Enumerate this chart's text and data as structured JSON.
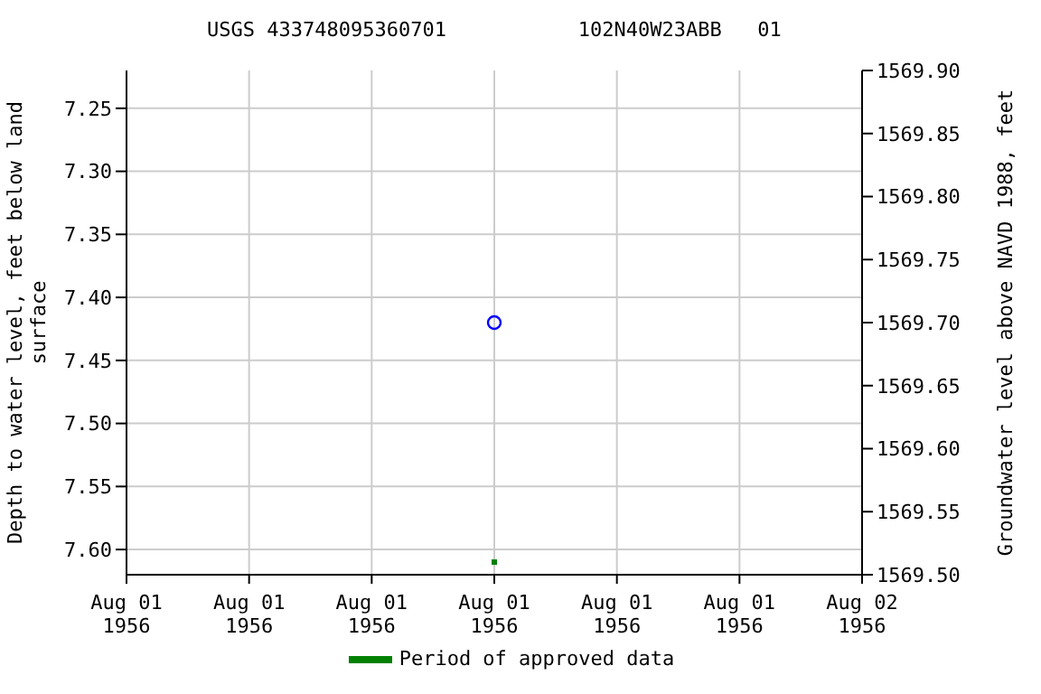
{
  "chart_data": {
    "type": "scatter",
    "title": "USGS 433748095360701           102N40W23ABB   01",
    "ylabel": "Depth to water level, feet below land surface",
    "y2label": "Groundwater level above NAVD 1988, feet",
    "x": [
      "1956-08-01T12:00"
    ],
    "xlim": [
      "1956-08-01T00:00",
      "1956-08-02T00:00"
    ],
    "xticks": [
      {
        "value": "1956-08-01T00:00",
        "label": "Aug 01\n1956"
      },
      {
        "value": "1956-08-01T04:00",
        "label": "Aug 01\n1956"
      },
      {
        "value": "1956-08-01T08:00",
        "label": "Aug 01\n1956"
      },
      {
        "value": "1956-08-01T12:00",
        "label": "Aug 01\n1956"
      },
      {
        "value": "1956-08-01T16:00",
        "label": "Aug 01\n1956"
      },
      {
        "value": "1956-08-01T20:00",
        "label": "Aug 01\n1956"
      },
      {
        "value": "1956-08-02T00:00",
        "label": "Aug 02\n1956"
      }
    ],
    "ylim": [
      7.62,
      7.22
    ],
    "yticks": [
      {
        "value": 7.25,
        "label": "7.25"
      },
      {
        "value": 7.3,
        "label": "7.30"
      },
      {
        "value": 7.35,
        "label": "7.35"
      },
      {
        "value": 7.4,
        "label": "7.40"
      },
      {
        "value": 7.45,
        "label": "7.45"
      },
      {
        "value": 7.5,
        "label": "7.50"
      },
      {
        "value": 7.55,
        "label": "7.55"
      },
      {
        "value": 7.6,
        "label": "7.60"
      }
    ],
    "y2lim": [
      1569.5,
      1569.9
    ],
    "y2ticks": [
      {
        "value": 1569.5,
        "label": "1569.50"
      },
      {
        "value": 1569.55,
        "label": "1569.55"
      },
      {
        "value": 1569.6,
        "label": "1569.60"
      },
      {
        "value": 1569.65,
        "label": "1569.65"
      },
      {
        "value": 1569.7,
        "label": "1569.70"
      },
      {
        "value": 1569.75,
        "label": "1569.75"
      },
      {
        "value": 1569.8,
        "label": "1569.80"
      },
      {
        "value": 1569.85,
        "label": "1569.85"
      },
      {
        "value": 1569.9,
        "label": "1569.90"
      }
    ],
    "series": [
      {
        "color": "#0000ff",
        "values": [
          7.42
        ],
        "marker": "circle"
      },
      {
        "name": "Period of approved data",
        "color": "#008000",
        "values": [
          7.61
        ],
        "marker": "square"
      }
    ],
    "grid": true,
    "legend": "bottom"
  }
}
